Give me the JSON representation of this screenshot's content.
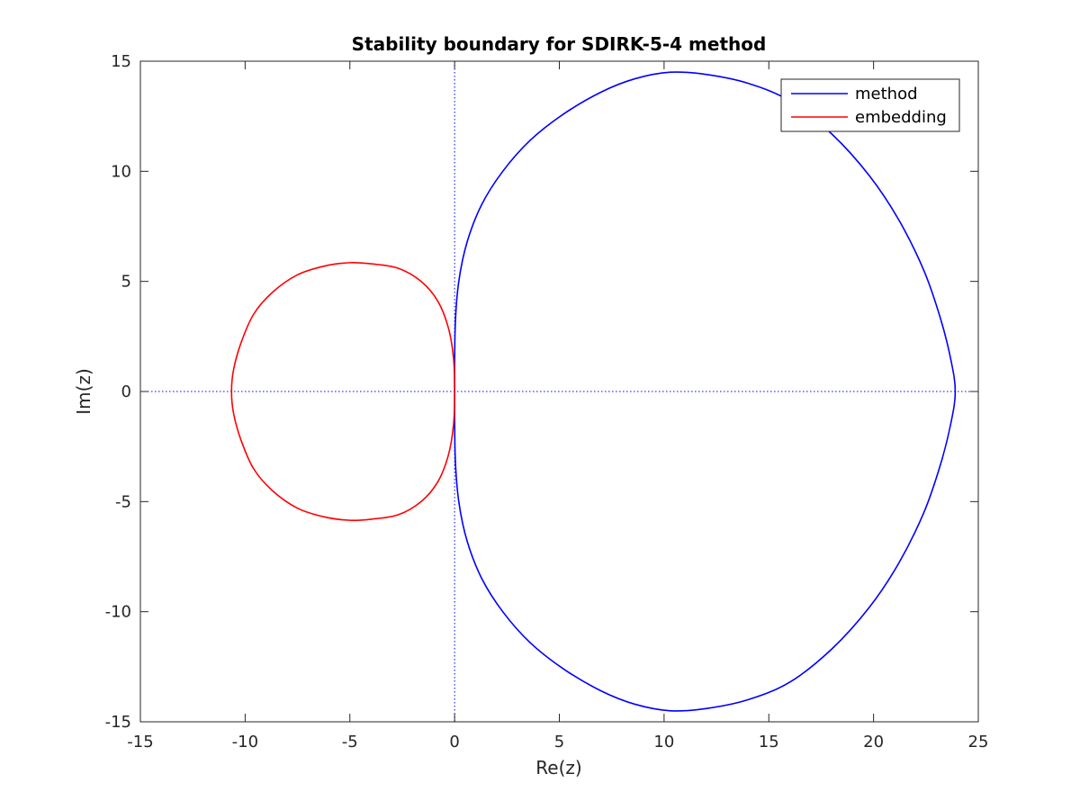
{
  "chart_data": {
    "type": "line",
    "title": "Stability boundary for SDIRK-5-4 method",
    "xlabel": "Re(z)",
    "ylabel": "Im(z)",
    "xlim": [
      -15,
      25
    ],
    "ylim": [
      -15,
      15
    ],
    "xticks": [
      -15,
      -10,
      -5,
      0,
      5,
      10,
      15,
      20,
      25
    ],
    "yticks": [
      -15,
      -10,
      -5,
      0,
      5,
      10,
      15
    ],
    "xtick_labels": [
      "-15",
      "-10",
      "-5",
      "0",
      "5",
      "10",
      "15",
      "20",
      "25"
    ],
    "ytick_labels": [
      "-15",
      "-10",
      "-5",
      "0",
      "5",
      "10",
      "15"
    ],
    "grid": false,
    "reference_lines": {
      "x": 0,
      "y": 0,
      "style": "dotted",
      "color": "#0000ff"
    },
    "legend": {
      "position": "top-right",
      "entries": [
        "method",
        "embedding"
      ]
    },
    "series": [
      {
        "name": "method",
        "color": "#0000ff",
        "closed": true,
        "points": [
          [
            0.0,
            0.0
          ],
          [
            0.03,
            3.0
          ],
          [
            0.2,
            5.0
          ],
          [
            0.6,
            6.8
          ],
          [
            1.3,
            8.5
          ],
          [
            2.3,
            10.0
          ],
          [
            3.6,
            11.4
          ],
          [
            5.2,
            12.6
          ],
          [
            7.0,
            13.6
          ],
          [
            8.6,
            14.2
          ],
          [
            10.3,
            14.5
          ],
          [
            12.0,
            14.4
          ],
          [
            14.0,
            14.0
          ],
          [
            16.0,
            13.2
          ],
          [
            18.0,
            11.7
          ],
          [
            19.8,
            9.8
          ],
          [
            21.2,
            7.8
          ],
          [
            22.4,
            5.5
          ],
          [
            23.2,
            3.3
          ],
          [
            23.7,
            1.4
          ],
          [
            23.9,
            0.0
          ],
          [
            23.7,
            -1.4
          ],
          [
            23.2,
            -3.3
          ],
          [
            22.4,
            -5.5
          ],
          [
            21.2,
            -7.8
          ],
          [
            19.8,
            -9.8
          ],
          [
            18.0,
            -11.7
          ],
          [
            16.0,
            -13.2
          ],
          [
            14.0,
            -14.0
          ],
          [
            12.0,
            -14.4
          ],
          [
            10.3,
            -14.5
          ],
          [
            8.6,
            -14.2
          ],
          [
            7.0,
            -13.6
          ],
          [
            5.2,
            -12.6
          ],
          [
            3.6,
            -11.4
          ],
          [
            2.3,
            -10.0
          ],
          [
            1.3,
            -8.5
          ],
          [
            0.6,
            -6.8
          ],
          [
            0.2,
            -5.0
          ],
          [
            0.03,
            -3.0
          ],
          [
            0.0,
            0.0
          ]
        ]
      },
      {
        "name": "embedding",
        "color": "#ff0000",
        "closed": true,
        "points": [
          [
            0.0,
            0.0
          ],
          [
            -0.05,
            1.5
          ],
          [
            -0.3,
            2.9
          ],
          [
            -0.8,
            4.1
          ],
          [
            -1.6,
            5.0
          ],
          [
            -2.7,
            5.6
          ],
          [
            -4.0,
            5.8
          ],
          [
            -5.0,
            5.85
          ],
          [
            -6.2,
            5.7
          ],
          [
            -7.5,
            5.3
          ],
          [
            -8.7,
            4.5
          ],
          [
            -9.6,
            3.5
          ],
          [
            -10.2,
            2.2
          ],
          [
            -10.55,
            1.0
          ],
          [
            -10.65,
            0.0
          ],
          [
            -10.55,
            -1.0
          ],
          [
            -10.2,
            -2.2
          ],
          [
            -9.6,
            -3.5
          ],
          [
            -8.7,
            -4.5
          ],
          [
            -7.5,
            -5.3
          ],
          [
            -6.2,
            -5.7
          ],
          [
            -5.0,
            -5.85
          ],
          [
            -4.0,
            -5.8
          ],
          [
            -2.7,
            -5.6
          ],
          [
            -1.6,
            -5.0
          ],
          [
            -0.8,
            -4.1
          ],
          [
            -0.3,
            -2.9
          ],
          [
            -0.05,
            -1.5
          ],
          [
            0.0,
            0.0
          ]
        ]
      }
    ]
  }
}
